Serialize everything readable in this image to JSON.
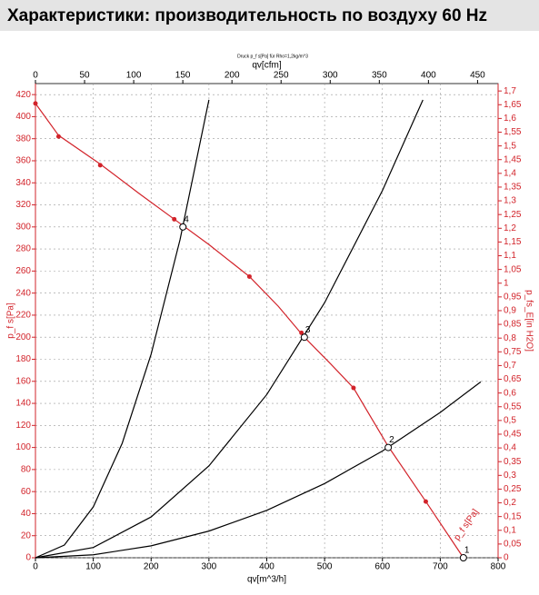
{
  "chart_data": {
    "type": "line",
    "title": "Характеристики: производительность по воздуху 60 Hz",
    "subtitle": "Druck p_f s[Pa] für Rho=1,2kg/m^3",
    "xlabel": "qv[m^3/h]",
    "x2label": "qv[cfm]",
    "ylabel": "p_f s[Pa]",
    "y2label": "p_fs_E[in H2O]",
    "xlim": [
      0,
      800
    ],
    "xticks": [
      0,
      100,
      200,
      300,
      400,
      500,
      600,
      700,
      800
    ],
    "x2lim": [
      0,
      470.9
    ],
    "x2ticks": [
      0,
      50,
      100,
      150,
      200,
      250,
      300,
      350,
      400,
      450
    ],
    "ylim": [
      0,
      430
    ],
    "yticks": [
      0,
      20,
      40,
      60,
      80,
      100,
      120,
      140,
      160,
      180,
      200,
      220,
      240,
      260,
      280,
      300,
      320,
      340,
      360,
      380,
      400,
      420
    ],
    "y2lim": [
      0,
      1.727
    ],
    "y2ticks": [
      0,
      {
        "value": 0.05,
        "label": "0,05"
      },
      {
        "value": 0.1,
        "label": "0,1"
      },
      {
        "value": 0.15,
        "label": "0,15"
      },
      {
        "value": 0.2,
        "label": "0,2"
      },
      {
        "value": 0.25,
        "label": "0,25"
      },
      {
        "value": 0.3,
        "label": "0,3"
      },
      {
        "value": 0.35,
        "label": "0,35"
      },
      {
        "value": 0.4,
        "label": "0,4"
      },
      {
        "value": 0.45,
        "label": "0,45"
      },
      {
        "value": 0.5,
        "label": "0,5"
      },
      {
        "value": 0.55,
        "label": "0,55"
      },
      {
        "value": 0.6,
        "label": "0,6"
      },
      {
        "value": 0.65,
        "label": "0,65"
      },
      {
        "value": 0.7,
        "label": "0,7"
      },
      {
        "value": 0.75,
        "label": "0,75"
      },
      {
        "value": 0.8,
        "label": "0,8"
      },
      {
        "value": 0.85,
        "label": "0,85"
      },
      {
        "value": 0.9,
        "label": "0,9"
      },
      {
        "value": 0.95,
        "label": "0,95"
      },
      1,
      {
        "value": 1.05,
        "label": "1,05"
      },
      {
        "value": 1.1,
        "label": "1,1"
      },
      {
        "value": 1.15,
        "label": "1,15"
      },
      {
        "value": 1.2,
        "label": "1,2"
      },
      {
        "value": 1.25,
        "label": "1,25"
      },
      {
        "value": 1.3,
        "label": "1,3"
      },
      {
        "value": 1.35,
        "label": "1,35"
      },
      {
        "value": 1.4,
        "label": "1,4"
      },
      {
        "value": 1.45,
        "label": "1,45"
      },
      {
        "value": 1.5,
        "label": "1,5"
      },
      {
        "value": 1.55,
        "label": "1,55"
      },
      {
        "value": 1.6,
        "label": "1,6"
      },
      {
        "value": 1.65,
        "label": "1,65"
      },
      {
        "value": 1.7,
        "label": "1,7"
      }
    ],
    "grid": true,
    "axis_color": "#d2232a",
    "series": [
      {
        "name": "p_f s[Pa]",
        "color": "#d2232a",
        "x": [
          0,
          40,
          112,
          180,
          240,
          300,
          370,
          420,
          465,
          510,
          550,
          610,
          675,
          740
        ],
        "values": [
          412,
          383,
          357,
          330,
          307,
          284,
          255,
          228,
          200,
          176,
          154,
          101,
          51,
          0
        ]
      },
      {
        "color": "#000000",
        "x": [
          0,
          50,
          100,
          150,
          200,
          250,
          300
        ],
        "values": [
          0,
          11.5,
          46.1,
          103.8,
          184.6,
          288.4,
          415.3
        ]
      },
      {
        "color": "#000000",
        "x": [
          0,
          100,
          200,
          300,
          400,
          500,
          600,
          670
        ],
        "values": [
          0,
          9.3,
          37,
          83.3,
          148,
          231.3,
          333,
          415.2
        ]
      },
      {
        "color": "#000000",
        "x": [
          0,
          100,
          200,
          300,
          400,
          500,
          600,
          700,
          770
        ],
        "values": [
          0,
          2.7,
          10.8,
          24.2,
          43,
          67.3,
          96.8,
          131.8,
          159.5
        ]
      }
    ],
    "markers": {
      "color": "#d2232a",
      "x": [
        0,
        40,
        112,
        240,
        370,
        460,
        550,
        675
      ],
      "values": [
        412,
        382,
        356,
        307,
        255,
        204,
        154,
        51
      ]
    },
    "points": [
      {
        "label": "4",
        "x": 255,
        "y": 300
      },
      {
        "label": "3",
        "x": 465,
        "y": 200
      },
      {
        "label": "2",
        "x": 610,
        "y": 100
      },
      {
        "label": "1",
        "x": 740,
        "y": 0
      }
    ]
  }
}
